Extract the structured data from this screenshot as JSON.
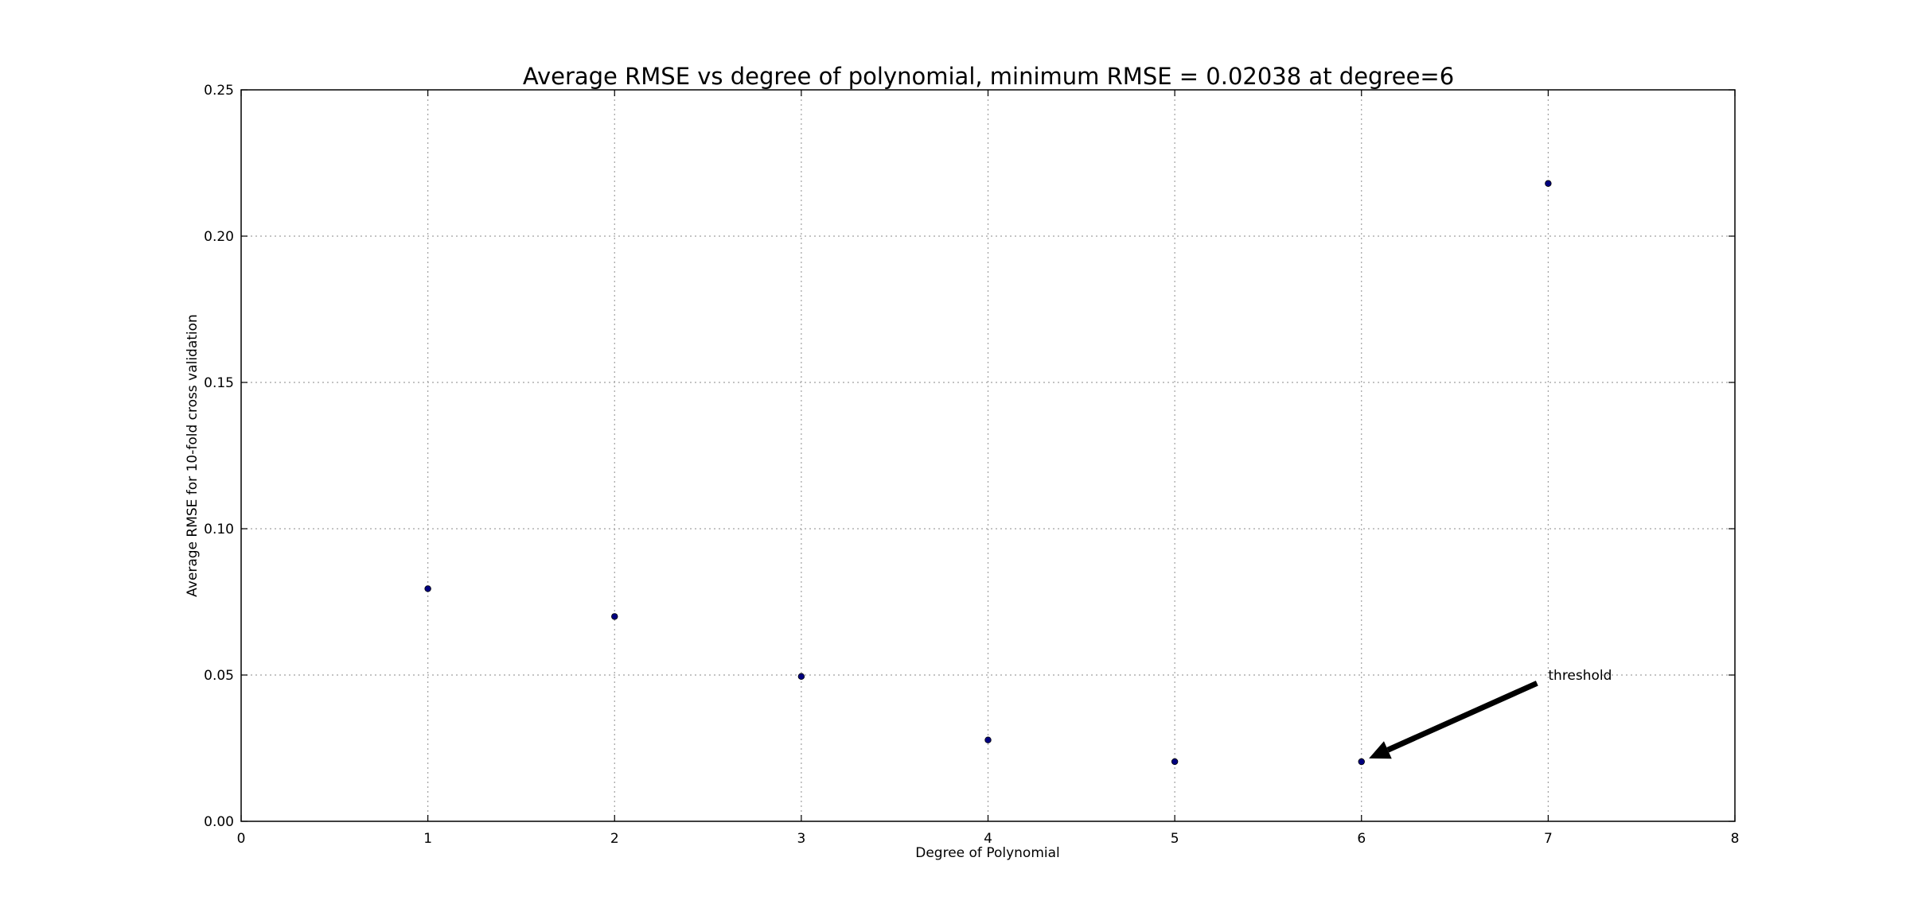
{
  "chart_data": {
    "type": "scatter",
    "title": "Average RMSE vs degree of polynomial, minimum RMSE = 0.02038 at degree=6",
    "xlabel": "Degree of Polynomial",
    "ylabel": "Average RMSE for 10-fold cross validation",
    "xlim": [
      0,
      8
    ],
    "ylim": [
      0,
      0.25
    ],
    "x_ticks": [
      0,
      1,
      2,
      3,
      4,
      5,
      6,
      7,
      8
    ],
    "x_tick_labels": [
      "0",
      "1",
      "2",
      "3",
      "4",
      "5",
      "6",
      "7",
      "8"
    ],
    "y_ticks": [
      0,
      0.05,
      0.1,
      0.15,
      0.2,
      0.25
    ],
    "y_tick_labels": [
      "0.00",
      "0.05",
      "0.10",
      "0.15",
      "0.20",
      "0.25"
    ],
    "grid": true,
    "marker_color": "#000080",
    "points": [
      {
        "x": 1,
        "y": 0.0795
      },
      {
        "x": 2,
        "y": 0.07
      },
      {
        "x": 3,
        "y": 0.0495
      },
      {
        "x": 4,
        "y": 0.0278
      },
      {
        "x": 5,
        "y": 0.0204
      },
      {
        "x": 6,
        "y": 0.02038
      },
      {
        "x": 7,
        "y": 0.218
      }
    ],
    "annotation": {
      "text": "threshold",
      "text_x": 7.0,
      "text_y": 0.05,
      "arrow_tail_x": 6.94,
      "arrow_tail_y": 0.0472,
      "arrow_head_x": 6.04,
      "arrow_head_y": 0.0215
    }
  }
}
